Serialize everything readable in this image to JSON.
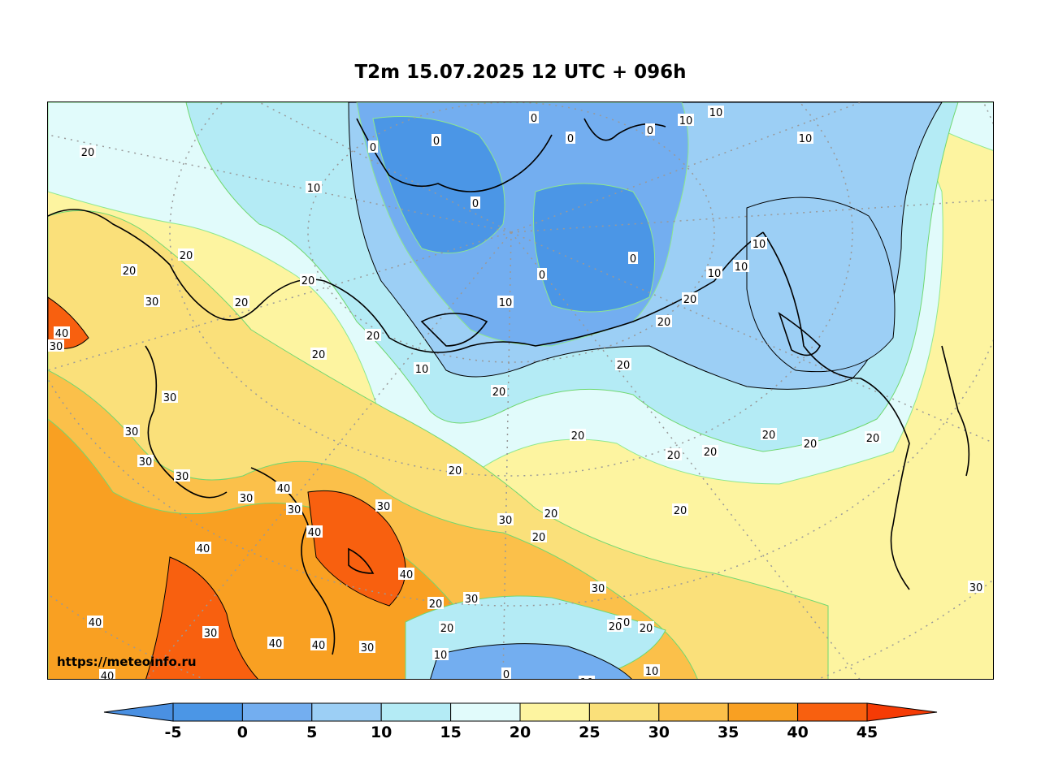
{
  "title": "T2m 15.07.2025 12 UTC + 096h",
  "watermark": "https://meteoinfo.ru",
  "colorbar": {
    "ticks": [
      "-5",
      "0",
      "5",
      "10",
      "15",
      "20",
      "25",
      "30",
      "35",
      "40",
      "45"
    ],
    "colors": {
      "below_-5": "#4a90e2",
      "-5_0": "#4b96e6",
      "0_5": "#73aef0",
      "5_10": "#9ccff5",
      "10_15": "#b4ebf5",
      "15_20": "#e1fbfb",
      "20_25": "#fdf4a0",
      "25_30": "#fae07a",
      "30_35": "#fbc04a",
      "35_40": "#f9a022",
      "40_45": "#f8600f",
      "above_45": "#f53b05"
    }
  },
  "contour_labels": [
    {
      "text": "20"
    },
    {
      "text": "10"
    },
    {
      "text": "0"
    },
    {
      "text": "0"
    },
    {
      "text": "0"
    },
    {
      "text": "0"
    },
    {
      "text": "0"
    },
    {
      "text": "10"
    },
    {
      "text": "10"
    },
    {
      "text": "10"
    },
    {
      "text": "20"
    },
    {
      "text": "20"
    },
    {
      "text": "30"
    },
    {
      "text": "20"
    },
    {
      "text": "20"
    },
    {
      "text": "40"
    },
    {
      "text": "30"
    },
    {
      "text": "20"
    },
    {
      "text": "20"
    },
    {
      "text": "0"
    },
    {
      "text": "0"
    },
    {
      "text": "0"
    },
    {
      "text": "10"
    },
    {
      "text": "10"
    },
    {
      "text": "10"
    },
    {
      "text": "10"
    },
    {
      "text": "20"
    },
    {
      "text": "20"
    },
    {
      "text": "20"
    },
    {
      "text": "10"
    },
    {
      "text": "30"
    },
    {
      "text": "30"
    },
    {
      "text": "30"
    },
    {
      "text": "30"
    },
    {
      "text": "30"
    },
    {
      "text": "40"
    },
    {
      "text": "30"
    },
    {
      "text": "40"
    },
    {
      "text": "30"
    },
    {
      "text": "20"
    },
    {
      "text": "20"
    },
    {
      "text": "20"
    },
    {
      "text": "20"
    },
    {
      "text": "20"
    },
    {
      "text": "20"
    },
    {
      "text": "20"
    },
    {
      "text": "20"
    },
    {
      "text": "20"
    },
    {
      "text": "40"
    },
    {
      "text": "40"
    },
    {
      "text": "30"
    },
    {
      "text": "30"
    },
    {
      "text": "20"
    },
    {
      "text": "30"
    },
    {
      "text": "20"
    },
    {
      "text": "30"
    },
    {
      "text": "20"
    },
    {
      "text": "30"
    },
    {
      "text": "20"
    },
    {
      "text": "10"
    },
    {
      "text": "40"
    },
    {
      "text": "40"
    },
    {
      "text": "40"
    },
    {
      "text": "40"
    },
    {
      "text": "30"
    },
    {
      "text": "20"
    },
    {
      "text": "0"
    },
    {
      "text": "10"
    },
    {
      "text": "10"
    },
    {
      "text": "20"
    },
    {
      "text": "30"
    },
    {
      "text": "40"
    },
    {
      "text": "20"
    }
  ]
}
